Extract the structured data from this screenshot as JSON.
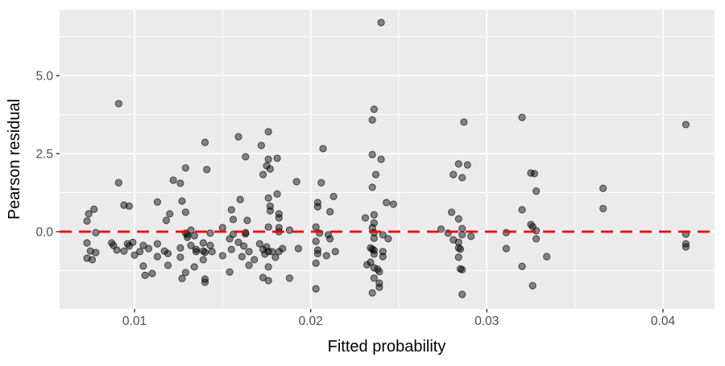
{
  "chart_data": {
    "type": "scatter",
    "title": "",
    "xlabel": "Fitted probability",
    "ylabel": "Pearson residual",
    "legend": "none",
    "grid": true,
    "panel_background": "#EBEBEB",
    "figure_background": "#FFFFFF",
    "grid_color": "#FFFFFF",
    "tick_color": "#333333",
    "tick_label_color": "#4D4D4D",
    "axis_title_color": "#000000",
    "xlim": [
      0.005747,
      0.042927
    ],
    "ylim": [
      -2.474,
      7.113
    ],
    "x_major_ticks": [
      0.01,
      0.02,
      0.03,
      0.04
    ],
    "x_tick_labels": [
      "0.01",
      "0.02",
      "0.03",
      "0.04"
    ],
    "x_minor_ticks": [
      0.015,
      0.025,
      0.035
    ],
    "y_major_ticks": [
      0.0,
      2.5,
      5.0
    ],
    "y_tick_labels": [
      "0.0",
      "2.5",
      "5.0"
    ],
    "y_minor_ticks": [
      -1.25,
      1.25,
      3.75,
      6.25
    ],
    "reference_line": {
      "y": 0,
      "style": "dashed",
      "color": "#EE0000",
      "dash": "15 9",
      "width": 2.8
    },
    "point_style": {
      "color": "#000000",
      "fill_opacity": 0.45,
      "stroke_opacity": 0.62,
      "radius_px": 4.1
    },
    "points": [
      [
        0.0091,
        4.1
      ],
      [
        0.014,
        2.86
      ],
      [
        0.024,
        6.7
      ],
      [
        0.0236,
        3.92
      ],
      [
        0.0235,
        3.58
      ],
      [
        0.0159,
        3.04
      ],
      [
        0.0176,
        3.2
      ],
      [
        0.0172,
        2.76
      ],
      [
        0.0207,
        2.66
      ],
      [
        0.0163,
        2.4
      ],
      [
        0.0176,
        2.32
      ],
      [
        0.0181,
        2.35
      ],
      [
        0.0235,
        2.47
      ],
      [
        0.024,
        2.32
      ],
      [
        0.0287,
        3.51
      ],
      [
        0.032,
        3.66
      ],
      [
        0.0413,
        3.43
      ],
      [
        0.0091,
        1.57
      ],
      [
        0.0129,
        2.04
      ],
      [
        0.0141,
        1.99
      ],
      [
        0.0122,
        1.65
      ],
      [
        0.0126,
        1.55
      ],
      [
        0.0094,
        0.85
      ],
      [
        0.0097,
        0.82
      ],
      [
        0.0077,
        0.72
      ],
      [
        0.0074,
        0.57
      ],
      [
        0.0073,
        0.34
      ],
      [
        0.0113,
        0.95
      ],
      [
        0.0118,
        0.36
      ],
      [
        0.012,
        0.57
      ],
      [
        0.0127,
        0.98
      ],
      [
        0.0129,
        0.62
      ],
      [
        0.0078,
        -0.03
      ],
      [
        0.0073,
        -0.36
      ],
      [
        0.0075,
        -0.62
      ],
      [
        0.0078,
        -0.67
      ],
      [
        0.0073,
        -0.85
      ],
      [
        0.0076,
        -0.9
      ],
      [
        0.0087,
        -0.36
      ],
      [
        0.0088,
        -0.44
      ],
      [
        0.009,
        -0.59
      ],
      [
        0.0094,
        -0.62
      ],
      [
        0.0096,
        -0.39
      ],
      [
        0.0097,
        -0.46
      ],
      [
        0.0099,
        -0.34
      ],
      [
        0.01,
        -0.75
      ],
      [
        0.0103,
        -0.64
      ],
      [
        0.0105,
        -0.44
      ],
      [
        0.0108,
        -0.54
      ],
      [
        0.0105,
        -1.1
      ],
      [
        0.011,
        -1.34
      ],
      [
        0.0106,
        -1.4
      ],
      [
        0.0113,
        -0.39
      ],
      [
        0.0113,
        -0.8
      ],
      [
        0.0117,
        -0.62
      ],
      [
        0.0119,
        -0.7
      ],
      [
        0.0119,
        -1.08
      ],
      [
        0.0126,
        -0.52
      ],
      [
        0.0126,
        -0.82
      ],
      [
        0.0129,
        -0.05
      ],
      [
        0.013,
        -0.1
      ],
      [
        0.013,
        -0.18
      ],
      [
        0.0132,
        0.05
      ],
      [
        0.0134,
        -0.13
      ],
      [
        0.0132,
        -0.44
      ],
      [
        0.0135,
        -0.57
      ],
      [
        0.0135,
        -0.64
      ],
      [
        0.0139,
        -0.36
      ],
      [
        0.0139,
        -0.62
      ],
      [
        0.014,
        -0.66
      ],
      [
        0.0143,
        -0.05
      ],
      [
        0.0143,
        -0.44
      ],
      [
        0.0144,
        -0.64
      ],
      [
        0.0134,
        -1.13
      ],
      [
        0.0129,
        -1.31
      ],
      [
        0.0139,
        -0.9
      ],
      [
        0.014,
        -1.52
      ],
      [
        0.014,
        -1.62
      ],
      [
        0.0127,
        -1.5
      ],
      [
        0.015,
        -0.77
      ],
      [
        0.015,
        0.13
      ],
      [
        0.0156,
        -0.08
      ],
      [
        0.0164,
        0.36
      ],
      [
        0.0156,
        0.39
      ],
      [
        0.0154,
        -1.29
      ],
      [
        0.0175,
        2.11
      ],
      [
        0.0177,
        2.01
      ],
      [
        0.0173,
        1.83
      ],
      [
        0.0192,
        1.6
      ],
      [
        0.0206,
        1.57
      ],
      [
        0.016,
        1.03
      ],
      [
        0.0155,
        0.7
      ],
      [
        0.0176,
        1.08
      ],
      [
        0.0181,
        1.21
      ],
      [
        0.0177,
        0.82
      ],
      [
        0.0177,
        0.67
      ],
      [
        0.0182,
        0.57
      ],
      [
        0.0182,
        0.44
      ],
      [
        0.0213,
        1.13
      ],
      [
        0.0204,
        0.93
      ],
      [
        0.0204,
        0.8
      ],
      [
        0.0211,
        0.64
      ],
      [
        0.0176,
        0.15
      ],
      [
        0.0182,
        0.13
      ],
      [
        0.0182,
        0.0
      ],
      [
        0.0163,
        -0.03
      ],
      [
        0.0163,
        -0.07
      ],
      [
        0.0188,
        0.05
      ],
      [
        0.0203,
        0.15
      ],
      [
        0.0205,
        -0.05
      ],
      [
        0.0203,
        -0.31
      ],
      [
        0.021,
        -0.1
      ],
      [
        0.0211,
        -0.23
      ],
      [
        0.0154,
        -0.23
      ],
      [
        0.0155,
        -0.57
      ],
      [
        0.0159,
        -0.34
      ],
      [
        0.0162,
        -0.46
      ],
      [
        0.0165,
        -0.64
      ],
      [
        0.0161,
        -0.8
      ],
      [
        0.0165,
        -1.08
      ],
      [
        0.0168,
        -0.9
      ],
      [
        0.0171,
        -0.39
      ],
      [
        0.0173,
        -0.57
      ],
      [
        0.0175,
        -0.49
      ],
      [
        0.0176,
        -0.64
      ],
      [
        0.0174,
        -0.72
      ],
      [
        0.0178,
        -0.64
      ],
      [
        0.018,
        -0.82
      ],
      [
        0.0182,
        -0.64
      ],
      [
        0.0184,
        -0.54
      ],
      [
        0.0176,
        -1.13
      ],
      [
        0.0173,
        -1.47
      ],
      [
        0.0176,
        -1.57
      ],
      [
        0.0188,
        -1.49
      ],
      [
        0.0193,
        -0.54
      ],
      [
        0.0204,
        -0.59
      ],
      [
        0.0204,
        -0.7
      ],
      [
        0.0203,
        -1.01
      ],
      [
        0.0209,
        -0.77
      ],
      [
        0.0214,
        -0.64
      ],
      [
        0.0203,
        -1.83
      ],
      [
        0.0237,
        1.83
      ],
      [
        0.0235,
        1.42
      ],
      [
        0.0231,
        0.44
      ],
      [
        0.0236,
        0.54
      ],
      [
        0.0236,
        0.28
      ],
      [
        0.0235,
        0.13
      ],
      [
        0.0236,
        -0.03
      ],
      [
        0.0236,
        -0.21
      ],
      [
        0.0234,
        -0.52
      ],
      [
        0.0235,
        -0.56
      ],
      [
        0.0236,
        -0.6
      ],
      [
        0.0236,
        -0.72
      ],
      [
        0.0234,
        -0.98
      ],
      [
        0.0232,
        -1.06
      ],
      [
        0.0236,
        -1.16
      ],
      [
        0.0238,
        -1.2
      ],
      [
        0.0239,
        -1.28
      ],
      [
        0.0236,
        -1.49
      ],
      [
        0.0239,
        -1.65
      ],
      [
        0.0235,
        -1.96
      ],
      [
        0.0239,
        -1.78
      ],
      [
        0.0243,
        0.93
      ],
      [
        0.0247,
        0.88
      ],
      [
        0.0241,
        -0.1
      ],
      [
        0.0244,
        -0.23
      ],
      [
        0.0241,
        -0.64
      ],
      [
        0.0241,
        -0.8
      ],
      [
        0.0284,
        2.17
      ],
      [
        0.0289,
        2.14
      ],
      [
        0.0281,
        1.83
      ],
      [
        0.0286,
        1.73
      ],
      [
        0.028,
        0.62
      ],
      [
        0.0284,
        0.41
      ],
      [
        0.0274,
        0.08
      ],
      [
        0.0278,
        -0.05
      ],
      [
        0.0286,
        0.1
      ],
      [
        0.0286,
        -0.1
      ],
      [
        0.0291,
        -0.15
      ],
      [
        0.0281,
        -0.26
      ],
      [
        0.0284,
        -0.34
      ],
      [
        0.0284,
        -0.52
      ],
      [
        0.0285,
        -0.56
      ],
      [
        0.0284,
        -0.82
      ],
      [
        0.0285,
        -1.19
      ],
      [
        0.0286,
        -1.22
      ],
      [
        0.0286,
        -2.01
      ],
      [
        0.0325,
        1.88
      ],
      [
        0.0327,
        1.86
      ],
      [
        0.0328,
        1.3
      ],
      [
        0.032,
        0.7
      ],
      [
        0.0325,
        0.23
      ],
      [
        0.0326,
        0.16
      ],
      [
        0.0328,
        0.03
      ],
      [
        0.0328,
        -0.23
      ],
      [
        0.0311,
        -0.03
      ],
      [
        0.0311,
        -0.54
      ],
      [
        0.0334,
        -0.8
      ],
      [
        0.032,
        -1.11
      ],
      [
        0.0326,
        -1.73
      ],
      [
        0.0366,
        1.39
      ],
      [
        0.0366,
        0.74
      ],
      [
        0.0413,
        -0.08
      ],
      [
        0.0413,
        -0.39
      ],
      [
        0.0413,
        -0.49
      ]
    ]
  }
}
